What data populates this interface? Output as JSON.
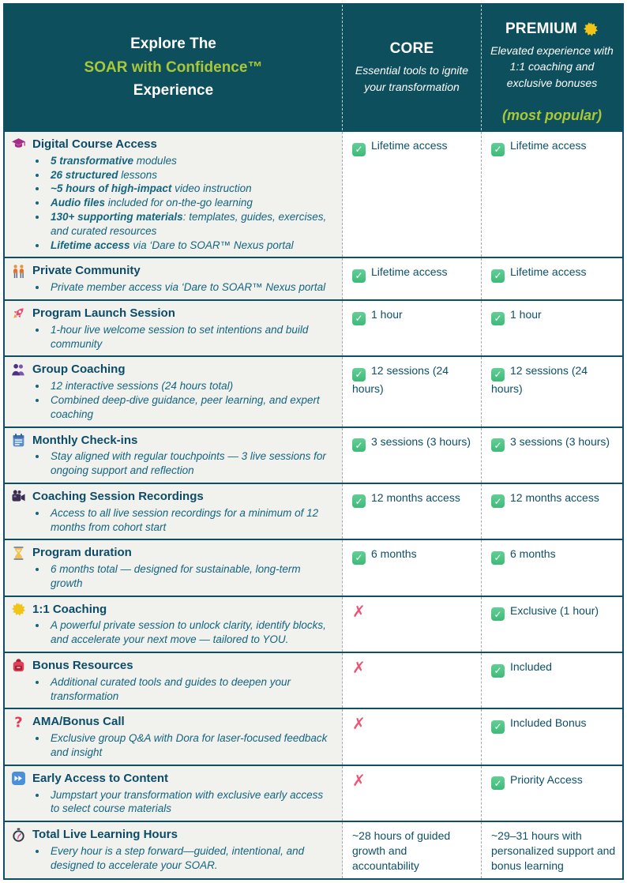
{
  "header": {
    "explore": "Explore The",
    "brand": "SOAR with Confidence™",
    "experience": "Experience",
    "core_name": "CORE",
    "core_subtitle": "Essential tools to ignite your transformation",
    "premium_name": "PREMIUM",
    "premium_sun_icon": "sun-icon",
    "premium_subtitle": "Elevated experience with 1:1 coaching and exclusive bonuses",
    "premium_badge": "(most popular)"
  },
  "colors": {
    "header_bg": "#0e4f5e",
    "accent_green": "#a9c838",
    "border_teal": "#0f4f63",
    "check_green": "#4ec488",
    "cross_pink": "#ee5575",
    "feature_bg": "#f1f1ee",
    "title_text": "#0c4c68",
    "bullet_text": "#136580"
  },
  "rows": [
    {
      "icon": "graduation-cap-icon",
      "title": "Digital Course Access",
      "bullets": [
        {
          "b": "5 transformative",
          "t": " modules"
        },
        {
          "b": "26 structured",
          "t": " lessons"
        },
        {
          "b": "~5 hours of high-impact",
          "t": " video instruction"
        },
        {
          "b": "Audio files",
          "t": " included for on-the-go learning"
        },
        {
          "b": "130+ supporting materials",
          "t": ": templates, guides, exercises, and curated resources"
        },
        {
          "b": "Lifetime access",
          "t": " via ‘Dare to SOAR™ Nexus portal"
        }
      ],
      "core": {
        "mark": "check",
        "text": "Lifetime access"
      },
      "premium": {
        "mark": "check",
        "text": "Lifetime access"
      }
    },
    {
      "icon": "people-icon",
      "title": "Private Community",
      "bullets": [
        {
          "b": "",
          "t": "Private member access via ‘Dare to SOAR™ Nexus portal"
        }
      ],
      "core": {
        "mark": "check",
        "text": "Lifetime access"
      },
      "premium": {
        "mark": "check",
        "text": "Lifetime access"
      }
    },
    {
      "icon": "rocket-icon",
      "title": "Program Launch Session",
      "bullets": [
        {
          "b": "",
          "t": "1-hour live welcome session to set intentions and build community"
        }
      ],
      "core": {
        "mark": "check",
        "text": "1 hour"
      },
      "premium": {
        "mark": "check",
        "text": "1 hour"
      }
    },
    {
      "icon": "group-icon",
      "title": "Group Coaching",
      "bullets": [
        {
          "b": "",
          "t": "12 interactive sessions (24 hours total)"
        },
        {
          "b": "",
          "t": "Combined deep-dive guidance, peer learning, and expert coaching"
        }
      ],
      "core": {
        "mark": "check",
        "text": "12 sessions (24 hours)"
      },
      "premium": {
        "mark": "check",
        "text": "12 sessions (24 hours)"
      }
    },
    {
      "icon": "calendar-icon",
      "title": "Monthly Check-ins",
      "bullets": [
        {
          "b": "",
          "t": "Stay aligned with regular touchpoints — 3 live sessions for ongoing support and reflection"
        }
      ],
      "core": {
        "mark": "check",
        "text": "3 sessions (3 hours)"
      },
      "premium": {
        "mark": "check",
        "text": "3 sessions (3 hours)"
      }
    },
    {
      "icon": "camera-icon",
      "title": "Coaching Session Recordings",
      "bullets": [
        {
          "b": "",
          "t": "Access to all live session recordings for a minimum of 12 months from cohort start"
        }
      ],
      "core": {
        "mark": "check",
        "text": "12 months access"
      },
      "premium": {
        "mark": "check",
        "text": "12 months access"
      }
    },
    {
      "icon": "hourglass-icon",
      "title": "Program duration",
      "bullets": [
        {
          "b": "",
          "t": "6 months total — designed for sustainable, long-term growth"
        }
      ],
      "core": {
        "mark": "check",
        "text": "6 months"
      },
      "premium": {
        "mark": "check",
        "text": "6 months"
      }
    },
    {
      "icon": "sun-icon",
      "title": "1:1 Coaching",
      "bullets": [
        {
          "b": "",
          "t": "A powerful private session to unlock clarity, identify blocks, and accelerate your next move — tailored to YOU."
        }
      ],
      "core": {
        "mark": "cross",
        "text": ""
      },
      "premium": {
        "mark": "check",
        "text": "Exclusive (1 hour)"
      }
    },
    {
      "icon": "backpack-icon",
      "title": "Bonus Resources",
      "bullets": [
        {
          "b": "",
          "t": "Additional curated tools and guides to deepen your transformation"
        }
      ],
      "core": {
        "mark": "cross",
        "text": ""
      },
      "premium": {
        "mark": "check",
        "text": "Included"
      }
    },
    {
      "icon": "question-icon",
      "title": "AMA/Bonus Call",
      "bullets": [
        {
          "b": "",
          "t": "Exclusive group Q&A with Dora for laser-focused feedback and insight"
        }
      ],
      "core": {
        "mark": "cross",
        "text": ""
      },
      "premium": {
        "mark": "check",
        "text": "Included Bonus"
      }
    },
    {
      "icon": "fast-forward-icon",
      "title": "Early Access to Content",
      "bullets": [
        {
          "b": "",
          "t": "Jumpstart your transformation with exclusive early access to select course materials"
        }
      ],
      "core": {
        "mark": "cross",
        "text": ""
      },
      "premium": {
        "mark": "check",
        "text": "Priority Access"
      }
    },
    {
      "icon": "stopwatch-icon",
      "title": "Total Live Learning Hours",
      "bullets": [
        {
          "b": "",
          "t": "Every hour is a step forward—guided, intentional, and designed to accelerate your SOAR."
        }
      ],
      "core": {
        "mark": "none",
        "text": "~28 hours of guided growth and accountability"
      },
      "premium": {
        "mark": "none",
        "text": "~29–31 hours with personalized support and bonus learning"
      }
    }
  ]
}
